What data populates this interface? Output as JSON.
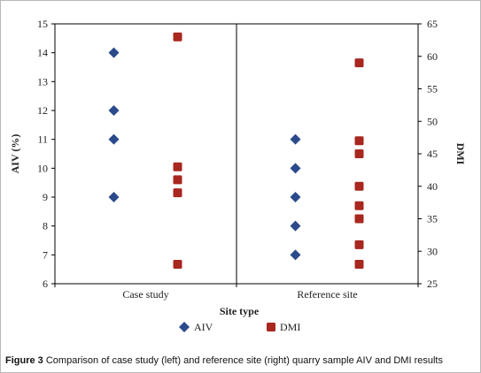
{
  "chart_data": {
    "type": "scatter",
    "xlabel": "Site type",
    "categories": [
      "Case study",
      "Reference site"
    ],
    "y_left": {
      "label": "AIV (%)",
      "ylim": [
        6,
        15
      ],
      "ticks": [
        "6",
        "7",
        "8",
        "9",
        "10",
        "11",
        "12",
        "13",
        "14",
        "15"
      ]
    },
    "y_right": {
      "label": "DMI",
      "ylim": [
        25,
        65
      ],
      "ticks": [
        "25",
        "30",
        "35",
        "40",
        "45",
        "50",
        "55",
        "60",
        "65"
      ]
    },
    "series": [
      {
        "name": "AIV",
        "axis": "left",
        "marker": "diamond",
        "color": "#2b4a8b",
        "points": [
          {
            "category": "Case study",
            "values": [
              14,
              12,
              11,
              9
            ]
          },
          {
            "category": "Reference site",
            "values": [
              11,
              10,
              9,
              8,
              7
            ]
          }
        ]
      },
      {
        "name": "DMI",
        "axis": "right",
        "marker": "square",
        "color": "#a8271f",
        "points": [
          {
            "category": "Case study",
            "values": [
              63,
              43,
              41,
              39,
              28
            ]
          },
          {
            "category": "Reference site",
            "values": [
              59,
              47,
              45,
              40,
              37,
              35,
              31,
              28
            ]
          }
        ]
      }
    ],
    "grid": false,
    "category_divider": true,
    "legend_position": "bottom"
  },
  "caption": {
    "label": "Figure 3",
    "text": " Comparison of case study (left) and reference site (right) quarry sample AIV and DMI results"
  }
}
